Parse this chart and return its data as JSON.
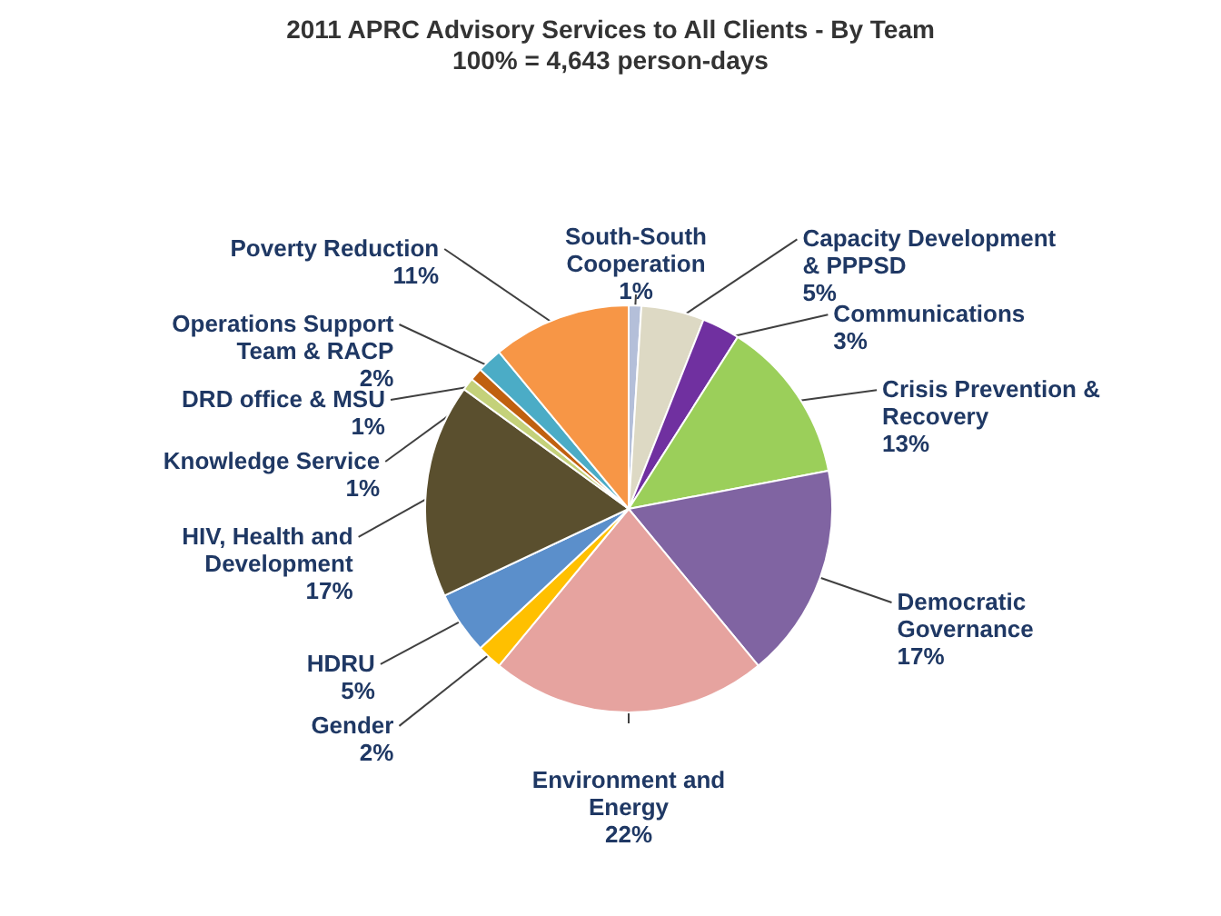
{
  "chart_data": {
    "type": "pie",
    "title": "2011 APRC Advisory Services to All Clients - By Team",
    "subtitle": "100% = 4,643 person-days",
    "categories": [
      "South-South Cooperation",
      "Capacity Development & PPPSD",
      "Communications",
      "Crisis Prevention & Recovery",
      "Democratic Governance",
      "Environment and Energy",
      "Gender",
      "HDRU",
      "HIV, Health and Development",
      "Knowledge Service",
      "DRD office & MSU",
      "Operations Support Team & RACP",
      "Poverty Reduction"
    ],
    "values": [
      1,
      5,
      3,
      13,
      17,
      22,
      2,
      5,
      17,
      1,
      1,
      2,
      11
    ],
    "value_labels": [
      "1%",
      "5%",
      "3%",
      "13%",
      "17%",
      "22%",
      "2%",
      "5%",
      "17%",
      "1%",
      "1%",
      "2%",
      "11%"
    ],
    "colors": [
      "#b4bfd9",
      "#ddd9c4",
      "#7030a0",
      "#9bcf5a",
      "#8064a2",
      "#e6a39f",
      "#ffc000",
      "#5b8fcb",
      "#5a4f2e",
      "#c4d17a",
      "#c0600f",
      "#4bacc6",
      "#f79646"
    ],
    "legend": false
  }
}
